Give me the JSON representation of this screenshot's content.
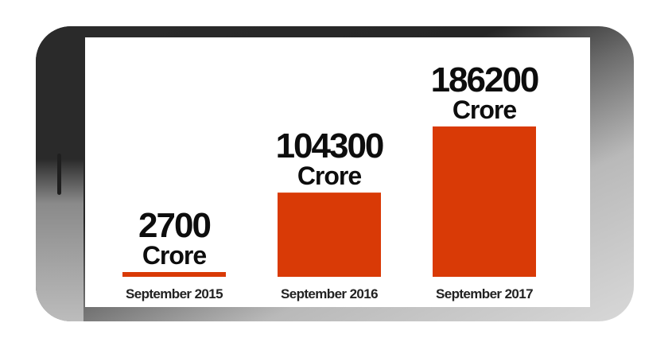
{
  "chart_data": {
    "type": "bar",
    "categories": [
      "September 2015",
      "September 2016",
      "September 2017"
    ],
    "values": [
      2700,
      104300,
      186200
    ],
    "data_labels": [
      "2700",
      "104300",
      "186200"
    ],
    "unit_label": "Crore",
    "ylim": [
      0,
      186200
    ],
    "grid": false,
    "legend": "none",
    "title": "",
    "xlabel": "",
    "ylabel": ""
  },
  "colors": {
    "bar": "#d93a06",
    "text": "#0d0d0d",
    "phone_body": "#262626"
  }
}
